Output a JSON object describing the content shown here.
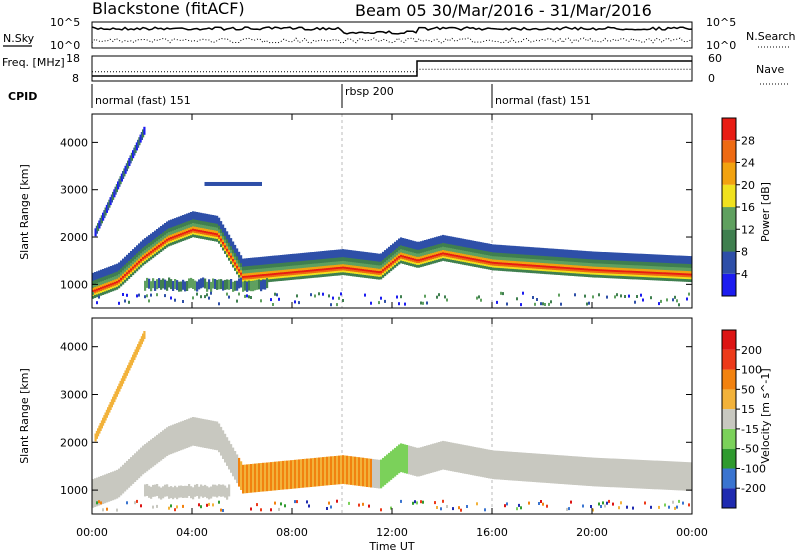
{
  "chart_data": [
    {
      "type": "line",
      "panel": "noise",
      "title_left": "Blackstone (fitACF)",
      "title_right": "Beam 05  30/Mar/2016 - 31/Mar/2016",
      "ylabel": "N.Sky",
      "ylabel_right": "N.Search",
      "left_ticks": [
        "10^5",
        "10^0"
      ],
      "right_ticks": [
        "10^5",
        "10^0"
      ]
    },
    {
      "type": "line",
      "panel": "freq-nave",
      "ylabel": "Freq. [MHz]",
      "ylabel_right": "Nave",
      "left_ticks": [
        "18",
        "8"
      ],
      "right_ticks": [
        "60",
        "0"
      ],
      "series": [
        {
          "name": "Freq.",
          "x": [
            "00:00",
            "13:00",
            "13:00",
            "24:00"
          ],
          "values": [
            10,
            10,
            16,
            16
          ]
        },
        {
          "name": "Nave",
          "x": [
            "00:00",
            "13:00",
            "13:00",
            "24:00"
          ],
          "values": [
            22,
            22,
            28,
            28
          ]
        }
      ]
    },
    {
      "type": "table",
      "panel": "cpid",
      "label": "CPID",
      "segments": [
        {
          "text": "normal (fast) 151",
          "start_hour": 0
        },
        {
          "text": "rbsp 200",
          "start_hour": 10
        },
        {
          "text": "normal (fast) 151",
          "start_hour": 16
        }
      ]
    },
    {
      "type": "heatmap",
      "panel": "power",
      "ylabel": "Slant Range [km]",
      "y_ticks": [
        "1000",
        "2000",
        "3000",
        "4000"
      ],
      "ylim": [
        500,
        4600
      ],
      "colorbar_label": "Power [dB]",
      "colorbar_ticks": [
        "4",
        "8",
        "12",
        "16",
        "20",
        "24",
        "28"
      ],
      "colors": [
        "#1c1cf0",
        "#2e4fa8",
        "#3f7f4f",
        "#5fa05f",
        "#f0e11e",
        "#f2a20f",
        "#ee6a12",
        "#e81c14"
      ],
      "trace_points": [
        [
          0,
          900
        ],
        [
          1,
          1100
        ],
        [
          2,
          1600
        ],
        [
          3,
          2000
        ],
        [
          4,
          2200
        ],
        [
          5,
          2100
        ],
        [
          6,
          1200
        ],
        [
          8,
          1300
        ],
        [
          10,
          1400
        ],
        [
          11.5,
          1300
        ],
        [
          12.3,
          1650
        ],
        [
          13,
          1550
        ],
        [
          14,
          1700
        ],
        [
          16,
          1500
        ],
        [
          20,
          1350
        ],
        [
          24,
          1250
        ]
      ]
    },
    {
      "type": "heatmap",
      "panel": "velocity",
      "ylabel": "Slant Range [km]",
      "y_ticks": [
        "1000",
        "2000",
        "3000",
        "4000"
      ],
      "ylim": [
        500,
        4600
      ],
      "colorbar_label": "Velocity [m s^-1]",
      "colorbar_ticks": [
        "200",
        "100",
        "50",
        "15",
        "-15",
        "-50",
        "-100",
        "-200"
      ],
      "colors": [
        "#1f2bb0",
        "#3a74d0",
        "#2f9a2f",
        "#7bd15a",
        "#c8c8c0",
        "#f2b23a",
        "#f2820f",
        "#ec3a1a",
        "#dc1414"
      ],
      "xlabel": "Time UT",
      "x_ticks": [
        "00:00",
        "04:00",
        "08:00",
        "12:00",
        "16:00",
        "20:00",
        "00:00"
      ]
    }
  ]
}
